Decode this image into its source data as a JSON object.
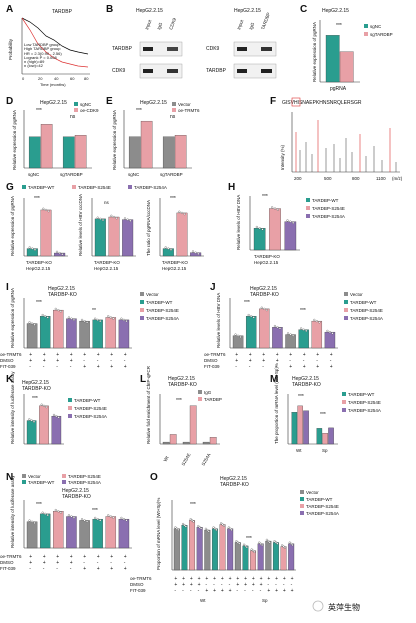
{
  "colors": {
    "teal": "#2a9d8f",
    "pink": "#e8a0a6",
    "purple": "#8a6fb0",
    "gray": "#8c8c8c",
    "red": "#d33",
    "green": "#3a8"
  },
  "panels": {
    "A": "A",
    "B": "B",
    "C": "C",
    "D": "D",
    "E": "E",
    "F": "F",
    "G": "G",
    "H": "H",
    "I": "I",
    "J": "J",
    "K": "K",
    "L": "L",
    "M": "M",
    "N": "N",
    "O": "O"
  },
  "cell": "HepG2.2.15",
  "cell_ko": "TARDBP-KO",
  "panelA": {
    "title": "TARDBP",
    "ylabel": "Probability",
    "xlabel": "Time (months)",
    "legend": [
      "Low TARDBP group",
      "High TARDBP group"
    ],
    "stats": [
      "HR = 2.3(0.90 - 2.56)",
      "Logrank P = 0.008",
      "n (high)=89",
      "n (low)=42"
    ],
    "xticks": [
      "0",
      "20",
      "40",
      "60",
      "80"
    ]
  },
  "panelB": {
    "cols1": [
      "Input",
      "IgG",
      "CDK9"
    ],
    "cols2": [
      "Input",
      "IgG",
      "TARDBP"
    ],
    "rows1": [
      "TARDBP",
      "CDK9"
    ],
    "rows2": [
      "CDK9",
      "TARDBP"
    ]
  },
  "panelF": {
    "seq": "GISVHISNAEPKHNSNRQLERSGR",
    "ylabel": "Intensity (%)",
    "xlabel": "(m/z)",
    "xticks": [
      "200",
      "500",
      "800",
      "1100"
    ]
  },
  "axes": {
    "pgRNA": "Relative expression of pgRNA",
    "ccc": "Relative levels of HBV cccDNA",
    "ratio": "The ratio of pgRNA/cccDNA",
    "hbv": "Relative levels of HBV DNA",
    "luc": "Relative intensity of luciferase assay",
    "chip": "Relative fold enrichment of ChIP-qPCR",
    "mrna": "The proportion of mRNA level (Wt+Sp)%",
    "mrna2": "Proportion of mRNA level (Wt+Sp)%"
  },
  "legends": {
    "C": [
      "sgNC",
      "sgTARDBP"
    ],
    "E": [
      "Vector",
      "oe-TRMT6"
    ],
    "G": [
      "TARDBP-WT",
      "TARDBP-S254E",
      "TARDBP-S254A"
    ],
    "I": [
      "Vector",
      "TARDBP-WT",
      "TARDBP-S254E",
      "TARDBP-S254A"
    ],
    "L": [
      "IgG",
      "TARDBP"
    ],
    "N": [
      "Vector",
      "TARDBP-S254E",
      "TARDBP-WT",
      "TARDBP-S254A"
    ]
  },
  "xlabels": {
    "C": "pgRNA",
    "D": [
      "sgNC",
      "sgTARDBP"
    ],
    "D_leg": [
      "sgNC",
      "oe-CDK9"
    ],
    "L": [
      "Wt",
      "S254E",
      "S254A"
    ],
    "M": [
      "Wt",
      "Sp"
    ]
  },
  "cond_rows": [
    "oe-TRMT6",
    "DMSO",
    "FIT-039"
  ],
  "cond_rows_O": [
    "oe-TRMT6",
    "DMSO",
    "FIT-039"
  ],
  "sig": {
    "three": "***",
    "two": "**",
    "one": "*",
    "ns": "ns"
  },
  "watermark": "英萍生物",
  "chart_data": [
    {
      "panel": "C",
      "type": "bar",
      "categories": [
        "pgRNA"
      ],
      "series": [
        {
          "name": "sgNC",
          "values": [
            1.0
          ]
        },
        {
          "name": "sgTARDBP",
          "values": [
            0.65
          ]
        }
      ]
    },
    {
      "panel": "D",
      "type": "bar",
      "categories": [
        "sgNC",
        "sgTARDBP"
      ],
      "series": [
        {
          "name": "sgNC",
          "values": [
            1.0,
            1.0
          ]
        },
        {
          "name": "oe-CDK9",
          "values": [
            1.4,
            1.05
          ]
        }
      ]
    },
    {
      "panel": "E",
      "type": "bar",
      "categories": [
        "sgNC",
        "sgTARDBP"
      ],
      "series": [
        {
          "name": "Vector",
          "values": [
            1.0,
            1.0
          ]
        },
        {
          "name": "oe-TRMT6",
          "values": [
            1.5,
            1.05
          ]
        }
      ]
    },
    {
      "panel": "G1",
      "type": "bar",
      "categories": [
        "TARDBP-WT",
        "TARDBP-S254E",
        "TARDBP-S254A"
      ],
      "values": [
        1.0,
        6.2,
        0.4
      ]
    },
    {
      "panel": "G2",
      "type": "bar",
      "categories": [
        "TARDBP-WT",
        "TARDBP-S254E",
        "TARDBP-S254A"
      ],
      "values": [
        1.0,
        1.05,
        0.98
      ]
    },
    {
      "panel": "G3",
      "type": "bar",
      "categories": [
        "TARDBP-WT",
        "TARDBP-S254E",
        "TARDBP-S254A"
      ],
      "values": [
        1.0,
        5.8,
        0.45
      ]
    },
    {
      "panel": "H",
      "type": "bar",
      "categories": [
        "TARDBP-WT",
        "TARDBP-S254E",
        "TARDBP-S254A"
      ],
      "values": [
        1.0,
        1.9,
        1.3
      ]
    },
    {
      "panel": "I",
      "type": "bar",
      "categories": [
        "1",
        "2",
        "3",
        "4",
        "5",
        "6",
        "7",
        "8"
      ],
      "values": [
        1.0,
        1.3,
        1.55,
        1.2,
        1.1,
        1.15,
        1.25,
        1.15
      ]
    },
    {
      "panel": "J",
      "type": "bar",
      "categories": [
        "1",
        "2",
        "3",
        "4",
        "5",
        "6",
        "7",
        "8"
      ],
      "values": [
        1.0,
        2.6,
        3.2,
        1.7,
        1.1,
        1.5,
        2.2,
        1.3
      ]
    },
    {
      "panel": "K",
      "type": "bar",
      "categories": [
        "TARDBP-WT",
        "TARDBP-S254E",
        "TARDBP-S254A"
      ],
      "values": [
        0.8,
        1.3,
        0.95
      ]
    },
    {
      "panel": "L",
      "type": "bar",
      "categories": [
        "Wt",
        "S254E",
        "S254A"
      ],
      "series": [
        {
          "name": "IgG",
          "values": [
            0.1,
            0.1,
            0.1
          ]
        },
        {
          "name": "TARDBP",
          "values": [
            0.5,
            2.0,
            0.35
          ]
        }
      ]
    },
    {
      "panel": "M",
      "type": "bar",
      "categories": [
        "Wt",
        "Sp"
      ],
      "series": [
        {
          "name": "TARDBP-WT",
          "values": [
            65,
            32
          ]
        },
        {
          "name": "TARDBP-S254E",
          "values": [
            78,
            22
          ]
        },
        {
          "name": "TARDBP-S254A",
          "values": [
            68,
            33
          ]
        }
      ]
    },
    {
      "panel": "N",
      "type": "bar",
      "categories": [
        "1",
        "2",
        "3",
        "4",
        "5",
        "6",
        "7",
        "8"
      ],
      "values": [
        1.0,
        1.3,
        1.4,
        1.2,
        1.05,
        1.1,
        1.2,
        1.1
      ]
    },
    {
      "panel": "O",
      "type": "bar",
      "categories": [
        "1",
        "2",
        "3",
        "4",
        "5",
        "6",
        "7",
        "8",
        "9",
        "10",
        "11",
        "12",
        "13",
        "14",
        "15",
        "16"
      ],
      "values": [
        60,
        65,
        72,
        62,
        58,
        60,
        66,
        60,
        40,
        35,
        28,
        38,
        42,
        40,
        34,
        38
      ]
    }
  ]
}
